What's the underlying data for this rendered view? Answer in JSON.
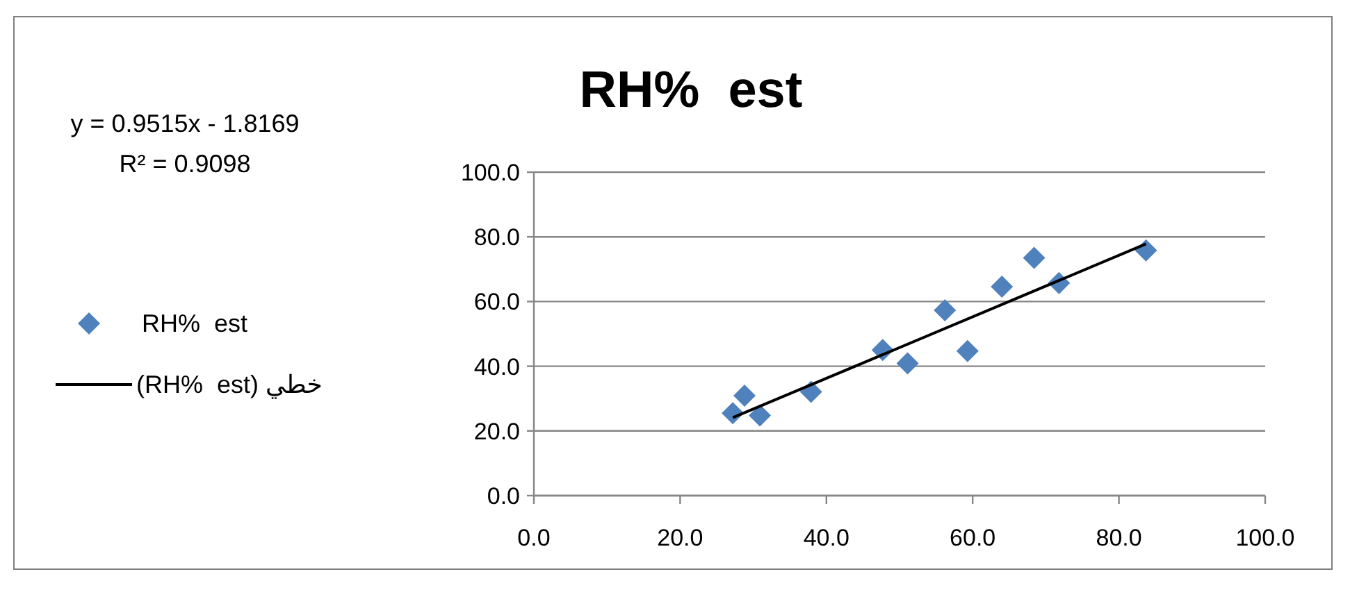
{
  "chart_data": {
    "type": "scatter",
    "title": "RH%  est",
    "annotations": [
      "y = 0.9515x - 1.8169",
      "R² = 0.9098"
    ],
    "series": [
      {
        "name": "RH%  est",
        "type": "scatter",
        "marker": "diamond",
        "color": "#4f81bd",
        "x": [
          27.2,
          28.8,
          30.9,
          37.9,
          47.7,
          51.1,
          56.2,
          59.3,
          64.0,
          68.4,
          71.8,
          83.7
        ],
        "values": [
          25.5,
          30.9,
          24.8,
          32.1,
          45.0,
          40.9,
          57.3,
          44.7,
          64.6,
          73.5,
          65.7,
          75.8
        ]
      },
      {
        "name": "خطي (RH%  est)",
        "type": "line",
        "marker": "none",
        "line_style": "solid",
        "color": "#000000",
        "x": [
          27.2,
          83.7
        ],
        "values": [
          24.1,
          77.8
        ]
      }
    ],
    "xlim": [
      0,
      100
    ],
    "ylim": [
      0,
      100
    ],
    "xticks": [
      {
        "value": 0,
        "label": "0.0"
      },
      {
        "value": 20,
        "label": "20.0"
      },
      {
        "value": 40,
        "label": "40.0"
      },
      {
        "value": 60,
        "label": "60.0"
      },
      {
        "value": 80,
        "label": "80.0"
      },
      {
        "value": 100,
        "label": "100.0"
      }
    ],
    "yticks": [
      {
        "value": 0,
        "label": "0.0"
      },
      {
        "value": 20,
        "label": "20.0"
      },
      {
        "value": 40,
        "label": "40.0"
      },
      {
        "value": 60,
        "label": "60.0"
      },
      {
        "value": 80,
        "label": "80.0"
      },
      {
        "value": 100,
        "label": "100.0"
      }
    ],
    "grid": "y",
    "legend": "left"
  }
}
